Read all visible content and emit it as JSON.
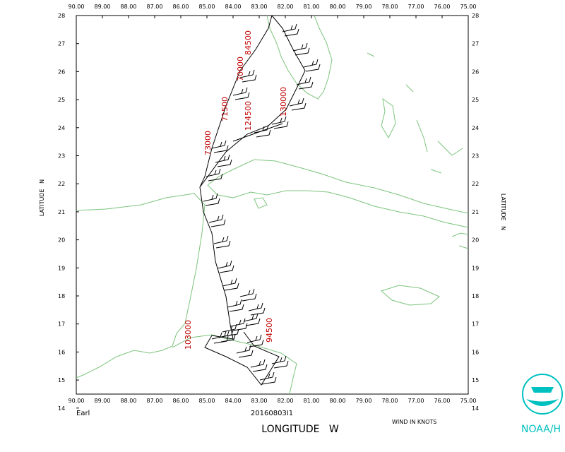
{
  "map": {
    "storm": "Earl",
    "mission": "20160803I1",
    "wind_note": "WIND IN KNOTS",
    "x_axis_label": "LONGITUDE   W",
    "y_axis_label": "LATITUDE   N",
    "agency": "NOAA/H",
    "lon_ticks": [
      {
        "value": 90,
        "label": "90.00"
      },
      {
        "value": 89,
        "label": "89.00"
      },
      {
        "value": 88,
        "label": "88.00"
      },
      {
        "value": 87,
        "label": "87.00"
      },
      {
        "value": 86,
        "label": "86.00"
      },
      {
        "value": 85,
        "label": "85.00"
      },
      {
        "value": 84,
        "label": "84.00"
      },
      {
        "value": 83,
        "label": "83.00"
      },
      {
        "value": 82,
        "label": "82.00"
      },
      {
        "value": 81,
        "label": "81.00"
      },
      {
        "value": 80,
        "label": "80.00"
      },
      {
        "value": 79,
        "label": "79.00"
      },
      {
        "value": 78,
        "label": "78.00"
      },
      {
        "value": 77,
        "label": "77.00"
      },
      {
        "value": 76,
        "label": "76.00"
      },
      {
        "value": 75,
        "label": "75.00"
      }
    ],
    "lat_ticks": [
      28,
      27,
      26,
      25,
      24,
      23,
      22,
      21,
      20,
      19,
      18,
      17,
      16,
      15,
      14
    ],
    "altitude_labels": [
      "130000",
      "124500",
      "71500",
      "70000",
      "84500",
      "73000",
      "103000",
      "94500"
    ]
  }
}
